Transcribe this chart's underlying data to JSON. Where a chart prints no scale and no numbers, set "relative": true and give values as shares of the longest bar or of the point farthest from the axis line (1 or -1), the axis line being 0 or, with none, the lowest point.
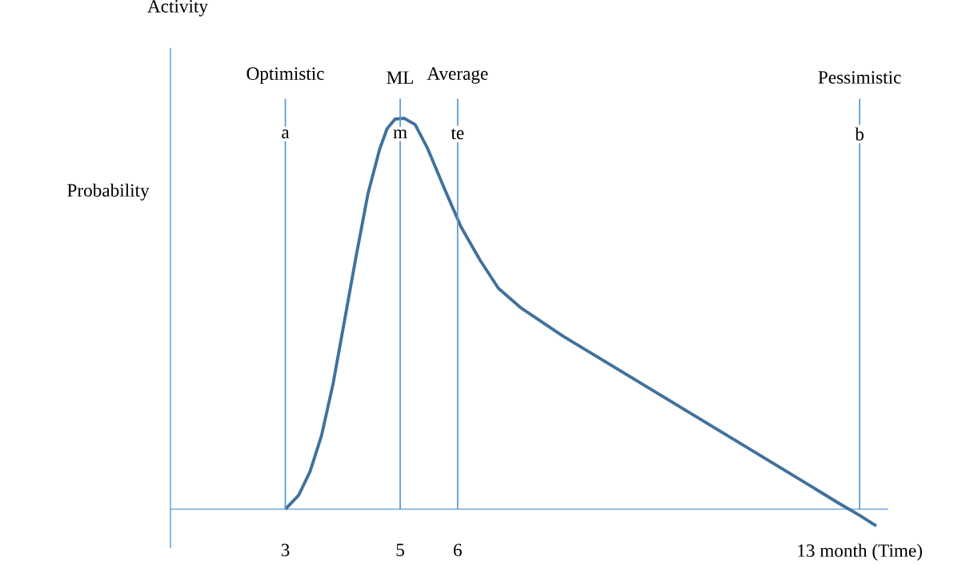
{
  "chart_data": {
    "type": "line",
    "relative": true,
    "title": "Activity",
    "ylabel": "Probability",
    "x": [
      3,
      3.23,
      3.43,
      3.63,
      3.83,
      4.03,
      4.23,
      4.44,
      4.64,
      4.77,
      4.91,
      5.07,
      5.26,
      5.48,
      5.77,
      6.06,
      6.39,
      6.71,
      7.11,
      7.83,
      9.44,
      11.05,
      12.65,
      13,
      13.29
    ],
    "series": [
      {
        "color": "#41719c",
        "values": [
          0,
          0.035,
          0.096,
          0.188,
          0.32,
          0.482,
          0.645,
          0.808,
          0.92,
          0.973,
          0.998,
          1,
          0.984,
          0.922,
          0.82,
          0.722,
          0.637,
          0.565,
          0.514,
          0.443,
          0.3,
          0.157,
          0.014,
          -0.016,
          -0.043
        ]
      }
    ],
    "xlim": [
      1,
      13.5
    ],
    "xticks": [
      3,
      5,
      6,
      {
        "value": 13,
        "label": "13 month (Time)"
      }
    ],
    "ref_lines": [
      {
        "axis": "x",
        "value": 3,
        "label": "Optimistic",
        "color": "#5b9bd5"
      },
      {
        "axis": "x",
        "value": 5,
        "label": "ML",
        "color": "#5b9bd5"
      },
      {
        "axis": "x",
        "value": 6,
        "label": "Average",
        "color": "#5b9bd5"
      },
      {
        "axis": "x",
        "value": 13,
        "label": "Pessimistic",
        "color": "#5b9bd5"
      }
    ],
    "annotations": [
      {
        "text": "a",
        "x": 3,
        "y": 0.96
      },
      {
        "text": "m",
        "x": 5,
        "y": 0.96
      },
      {
        "text": "te",
        "x": 6,
        "y": 0.96
      },
      {
        "text": "b",
        "x": 13,
        "y": 0.96
      }
    ],
    "marker": "none",
    "line_style": "solid"
  }
}
